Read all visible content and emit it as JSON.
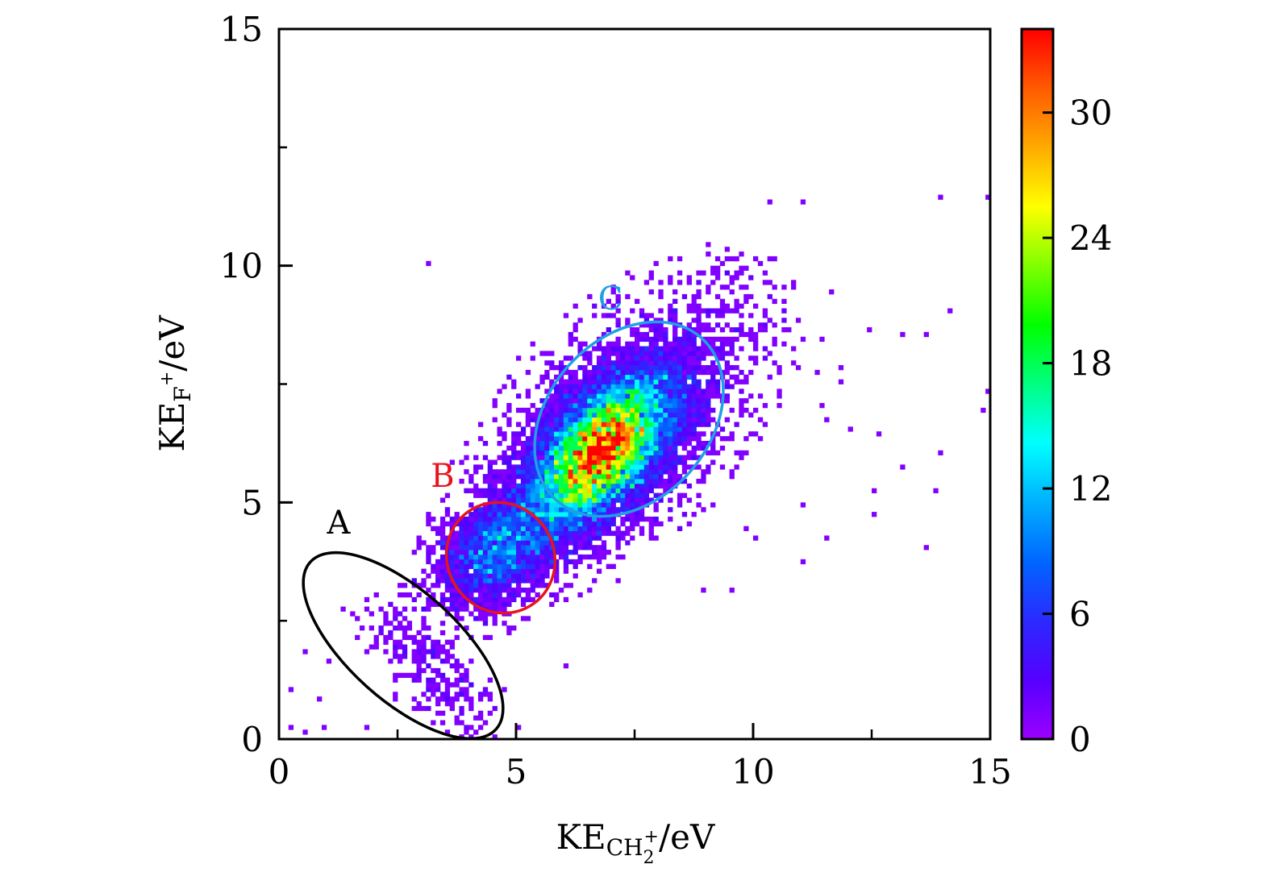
{
  "chart_data": {
    "type": "heatmap",
    "title": "",
    "xlabel": {
      "main": "KE",
      "sub": "CH",
      "sub_sub": "2",
      "sup": "+",
      "unit": "/eV"
    },
    "ylabel": {
      "main": "KE",
      "sub": "F",
      "sup": "+",
      "unit": "/eV"
    },
    "xlim": [
      0,
      15
    ],
    "ylim": [
      0,
      15
    ],
    "bin_width": 0.1,
    "x_ticks": [
      "0",
      "5",
      "10",
      "15"
    ],
    "x_tick_values": [
      0,
      5,
      10,
      15
    ],
    "x_minor_ticks": [
      2.5,
      7.5,
      12.5
    ],
    "y_ticks": [
      "0",
      "5",
      "10",
      "15"
    ],
    "y_tick_values": [
      0,
      5,
      10,
      15
    ],
    "y_minor_ticks": [
      2.5,
      7.5,
      12.5
    ],
    "grid": false,
    "colorbar": {
      "range": [
        0,
        34
      ],
      "ticks": [
        "0",
        "6",
        "12",
        "18",
        "24",
        "30"
      ],
      "tick_values": [
        0,
        6,
        12,
        18,
        24,
        30
      ],
      "colormap": [
        "#9b00ff",
        "#5500ff",
        "#2a2aff",
        "#0066ff",
        "#00b0ff",
        "#00ffff",
        "#00ff80",
        "#00ff00",
        "#80ff00",
        "#ffff00",
        "#ffaa00",
        "#ff5a00",
        "#ff0000"
      ],
      "location": "right"
    },
    "regions": [
      {
        "label": "A",
        "color": "#000000",
        "center": [
          2.6,
          2.0
        ],
        "description_counts": "sparse, 1-2 counts"
      },
      {
        "label": "B",
        "color": "#e8141c",
        "center": [
          4.7,
          3.9
        ],
        "peak_count": 12
      },
      {
        "label": "C",
        "color": "#1fa0e6",
        "center": [
          6.9,
          6.3
        ],
        "peak_count": 33
      }
    ],
    "clusters": [
      {
        "name": "C-main",
        "center": [
          6.8,
          6.1
        ],
        "sigma_major": 1.05,
        "sigma_minor": 0.55,
        "angle_deg": 48,
        "peak": 32
      },
      {
        "name": "B-main",
        "center": [
          4.6,
          4.0
        ],
        "sigma_major": 0.75,
        "sigma_minor": 0.5,
        "angle_deg": 40,
        "peak": 9
      },
      {
        "name": "C-halo",
        "center": [
          7.2,
          6.6
        ],
        "sigma_major": 1.9,
        "sigma_minor": 1.0,
        "angle_deg": 45,
        "peak": 2.2
      },
      {
        "name": "A-band",
        "center": [
          3.2,
          1.5
        ],
        "sigma_major": 1.1,
        "sigma_minor": 0.45,
        "angle_deg": -42,
        "peak": 0.9
      }
    ],
    "outlier_points": [
      [
        3.1,
        10.0
      ],
      [
        10.3,
        11.3
      ],
      [
        11.0,
        11.3
      ],
      [
        13.9,
        11.4
      ],
      [
        15.0,
        11.4
      ],
      [
        10.3,
        10.2
      ],
      [
        10.4,
        10.2
      ],
      [
        9.0,
        9.6
      ],
      [
        9.8,
        9.6
      ],
      [
        11.7,
        9.4
      ],
      [
        12.4,
        8.7
      ],
      [
        13.1,
        8.6
      ],
      [
        13.7,
        8.6
      ],
      [
        14.1,
        9.0
      ],
      [
        10.1,
        8.6
      ],
      [
        11.1,
        8.4
      ],
      [
        11.4,
        8.4
      ],
      [
        10.9,
        7.8
      ],
      [
        11.3,
        7.7
      ],
      [
        11.8,
        7.8
      ],
      [
        11.8,
        7.6
      ],
      [
        10.5,
        7.3
      ],
      [
        14.8,
        6.9
      ],
      [
        15.0,
        7.3
      ],
      [
        11.4,
        7.0
      ],
      [
        11.5,
        6.7
      ],
      [
        12.0,
        6.6
      ],
      [
        12.7,
        6.4
      ],
      [
        13.2,
        5.8
      ],
      [
        13.9,
        6.1
      ],
      [
        12.6,
        5.2
      ],
      [
        13.8,
        5.2
      ],
      [
        11.1,
        4.9
      ],
      [
        12.5,
        4.7
      ],
      [
        11.5,
        4.3
      ],
      [
        13.7,
        4.0
      ],
      [
        11.1,
        3.8
      ],
      [
        10.0,
        4.2
      ],
      [
        9.8,
        4.4
      ],
      [
        8.9,
        3.1
      ],
      [
        9.5,
        3.1
      ],
      [
        6.1,
        1.5
      ],
      [
        3.1,
        10.0
      ],
      [
        0.2,
        1.0
      ],
      [
        0.6,
        1.9
      ],
      [
        1.0,
        1.6
      ],
      [
        0.8,
        0.8
      ],
      [
        0.3,
        0.2
      ],
      [
        0.5,
        0.1
      ],
      [
        1.8,
        0.2
      ],
      [
        0.9,
        0.3
      ]
    ]
  },
  "annotations": {
    "label_a": "A",
    "label_b": "B",
    "label_c": "C"
  }
}
